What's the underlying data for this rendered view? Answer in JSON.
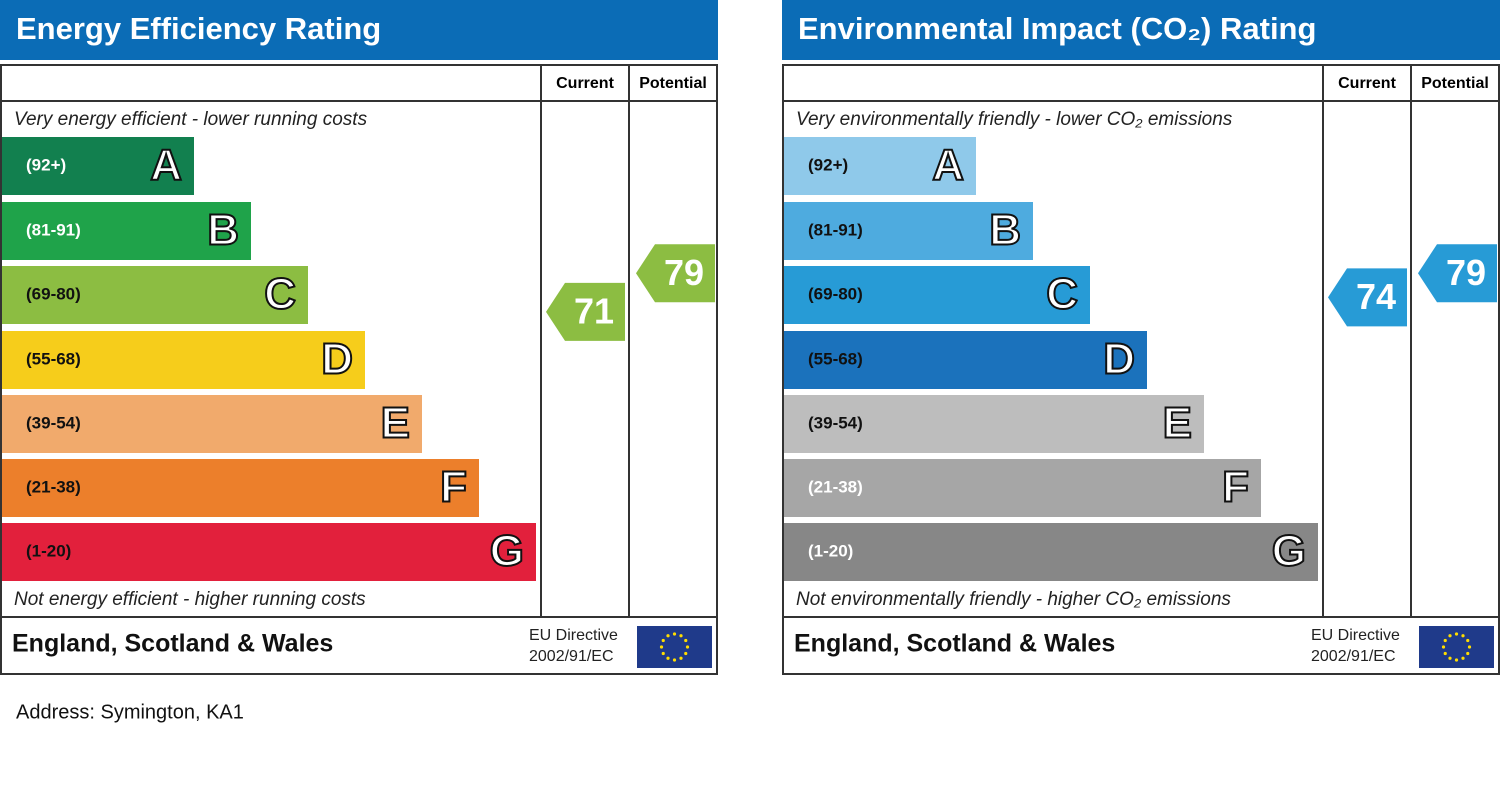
{
  "panels": [
    {
      "title": "Energy Efficiency Rating",
      "header": {
        "current": "Current",
        "potential": "Potential"
      },
      "top_note": "Very energy efficient - lower running costs",
      "bottom_note": "Not energy efficient - higher running costs",
      "bands": [
        {
          "range": "(92+)",
          "letter": "A",
          "color": "#12804f",
          "label_color": "#ffffff"
        },
        {
          "range": "(81-91)",
          "letter": "B",
          "color": "#1fa34a",
          "label_color": "#ffffff"
        },
        {
          "range": "(69-80)",
          "letter": "C",
          "color": "#8cbd42",
          "label_color": "#111111"
        },
        {
          "range": "(55-68)",
          "letter": "D",
          "color": "#f6cd1b",
          "label_color": "#111111"
        },
        {
          "range": "(39-54)",
          "letter": "E",
          "color": "#f1aa6c",
          "label_color": "#111111"
        },
        {
          "range": "(21-38)",
          "letter": "F",
          "color": "#ec7f2b",
          "label_color": "#111111"
        },
        {
          "range": "(1-20)",
          "letter": "G",
          "color": "#e2203c",
          "label_color": "#111111"
        }
      ],
      "current": 71,
      "potential": 79,
      "footer": {
        "region": "England, Scotland & Wales",
        "directive_line1": "EU Directive",
        "directive_line2": "2002/91/EC"
      }
    },
    {
      "title": "Environmental Impact (CO₂) Rating",
      "header": {
        "current": "Current",
        "potential": "Potential"
      },
      "top_note": "Very environmentally friendly - lower CO₂ emissions",
      "bottom_note": "Not environmentally friendly - higher CO₂ emissions",
      "bands": [
        {
          "range": "(92+)",
          "letter": "A",
          "color": "#8fc9ea",
          "label_color": "#111111"
        },
        {
          "range": "(81-91)",
          "letter": "B",
          "color": "#4eabdf",
          "label_color": "#111111"
        },
        {
          "range": "(69-80)",
          "letter": "C",
          "color": "#279bd6",
          "label_color": "#111111"
        },
        {
          "range": "(55-68)",
          "letter": "D",
          "color": "#1b72bc",
          "label_color": "#111111"
        },
        {
          "range": "(39-54)",
          "letter": "E",
          "color": "#bdbdbd",
          "label_color": "#111111"
        },
        {
          "range": "(21-38)",
          "letter": "F",
          "color": "#a6a6a6",
          "label_color": "#ffffff"
        },
        {
          "range": "(1-20)",
          "letter": "G",
          "color": "#878787",
          "label_color": "#ffffff"
        }
      ],
      "current": 74,
      "potential": 79,
      "footer": {
        "region": "England, Scotland & Wales",
        "directive_line1": "EU Directive",
        "directive_line2": "2002/91/EC"
      }
    }
  ],
  "address": "Address: Symington, KA1"
}
